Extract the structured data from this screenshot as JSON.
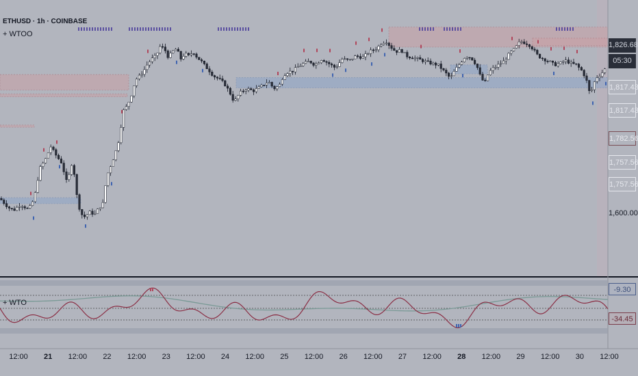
{
  "header": {
    "symbol_line": "ETHUSD · 1h · COINBASE",
    "indicator_main": "+ WTOO",
    "indicator_sub": "+ WTO"
  },
  "price_axis": {
    "tags": [
      {
        "text": "1,826.68",
        "style": "dark"
      },
      {
        "text": "05:30",
        "style": "dark"
      },
      {
        "text": "1,817.43",
        "style": "outline"
      },
      {
        "text": "1,817.43",
        "style": "outline"
      },
      {
        "text": "1,782.56",
        "style": "red"
      },
      {
        "text": "1,757.56",
        "style": "outline"
      },
      {
        "text": "1,757.56",
        "style": "outline"
      },
      {
        "text": "1,600.00",
        "style": "plain"
      }
    ]
  },
  "oscillator_axis": {
    "tags": [
      {
        "text": "-9.30",
        "style": "blue"
      },
      {
        "text": "-34.45",
        "style": "red"
      }
    ]
  },
  "time_axis": {
    "labels": [
      {
        "text": "12:00",
        "bold": false
      },
      {
        "text": "21",
        "bold": true
      },
      {
        "text": "12:00",
        "bold": false
      },
      {
        "text": "22",
        "bold": false
      },
      {
        "text": "12:00",
        "bold": false
      },
      {
        "text": "23",
        "bold": false
      },
      {
        "text": "12:00",
        "bold": false
      },
      {
        "text": "24",
        "bold": false
      },
      {
        "text": "12:00",
        "bold": false
      },
      {
        "text": "25",
        "bold": false
      },
      {
        "text": "12:00",
        "bold": false
      },
      {
        "text": "26",
        "bold": false
      },
      {
        "text": "12:00",
        "bold": false
      },
      {
        "text": "27",
        "bold": false
      },
      {
        "text": "12:00",
        "bold": false
      },
      {
        "text": "28",
        "bold": true
      },
      {
        "text": "12:00",
        "bold": false
      },
      {
        "text": "29",
        "bold": false
      },
      {
        "text": "12:00",
        "bold": false
      },
      {
        "text": "30",
        "bold": false
      },
      {
        "text": "12:00",
        "bold": false
      }
    ]
  },
  "colors": {
    "background": "#b2b5be",
    "candle_up": "#ffffff",
    "candle_down": "#2a2e39",
    "wick": "#131722",
    "supply_zone": "#c9a0a6",
    "demand_zone": "#8fa6c8",
    "osc_fast": "#8b2f45",
    "osc_slow": "#7a9a96",
    "osc_fast_high": "#2e4f9a",
    "marker_red": "#b0455a",
    "marker_blue": "#3e63b0",
    "marker_purple": "#5a4fa0"
  },
  "chart_data": [
    {
      "type": "candlestick",
      "title": "ETHUSD · 1h · COINBASE",
      "x_range": [
        "20 12:00",
        "30 12:00"
      ],
      "ylim": [
        1520,
        1860
      ],
      "reference_values": [
        1826.68,
        1817.43,
        1782.56,
        1757.56,
        1600.0
      ],
      "close_path_x": [
        0,
        5,
        12,
        20,
        30,
        42,
        50,
        58,
        66,
        74,
        82,
        90,
        98,
        106,
        113,
        118,
        123,
        132,
        138,
        145,
        150,
        156,
        162,
        168,
        174,
        180,
        186,
        192,
        198,
        204,
        210,
        216,
        222,
        228,
        234,
        240,
        246,
        252,
        258,
        264,
        270,
        276,
        282,
        288,
        294,
        300,
        306,
        312,
        318,
        324,
        330,
        336,
        342,
        350,
        360,
        370,
        380,
        392,
        400,
        408,
        414,
        420,
        428,
        436,
        444,
        452,
        460,
        470,
        480,
        490,
        500,
        510,
        520,
        530,
        540,
        550,
        558,
        564,
        570,
        578,
        586,
        594,
        602,
        610,
        620,
        630,
        640,
        650,
        658,
        664,
        672,
        680,
        688,
        696,
        702,
        708,
        714,
        720,
        728,
        736,
        744,
        752,
        760,
        766,
        772,
        778,
        786,
        794,
        802,
        810,
        818,
        826,
        834,
        842,
        850,
        856,
        862,
        866,
        870,
        876,
        882,
        888
      ],
      "close_path_price": [
        1620,
        1615,
        1608,
        1604,
        1612,
        1605,
        1620,
        1660,
        1672,
        1690,
        1678,
        1668,
        1640,
        1672,
        1618,
        1600,
        1595,
        1602,
        1598,
        1608,
        1612,
        1650,
        1665,
        1680,
        1700,
        1738,
        1745,
        1760,
        1780,
        1785,
        1792,
        1802,
        1808,
        1812,
        1825,
        1822,
        1810,
        1818,
        1822,
        1808,
        1815,
        1812,
        1818,
        1810,
        1805,
        1798,
        1792,
        1785,
        1782,
        1778,
        1772,
        1762,
        1750,
        1762,
        1768,
        1765,
        1770,
        1778,
        1768,
        1772,
        1786,
        1790,
        1792,
        1798,
        1802,
        1805,
        1800,
        1808,
        1802,
        1796,
        1808,
        1806,
        1812,
        1810,
        1818,
        1822,
        1830,
        1832,
        1825,
        1818,
        1820,
        1812,
        1810,
        1808,
        1805,
        1802,
        1800,
        1790,
        1782,
        1792,
        1802,
        1812,
        1810,
        1800,
        1784,
        1775,
        1790,
        1795,
        1800,
        1805,
        1815,
        1822,
        1832,
        1830,
        1828,
        1822,
        1812,
        1808,
        1805,
        1800,
        1802,
        1806,
        1802,
        1800,
        1792,
        1782,
        1760,
        1770,
        1782,
        1786,
        1792,
        1800
      ]
    },
    {
      "type": "line",
      "title": "+ WTO",
      "series": [
        {
          "name": "fast",
          "last_value": -34.45
        },
        {
          "name": "slow",
          "last_value": -9.3
        }
      ]
    }
  ]
}
